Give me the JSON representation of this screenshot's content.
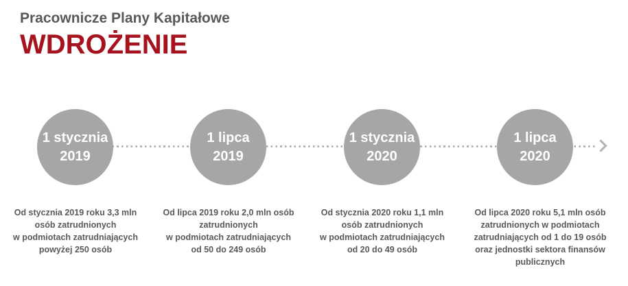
{
  "header": {
    "subtitle": "Pracownicze Plany Kapitałowe",
    "title": "WDROŻENIE"
  },
  "colors": {
    "accent_red": "#a6131f",
    "circle_gray": "#a6a6a6",
    "text_gray": "#595959",
    "line_gray": "#b3b3b3",
    "background": "#ffffff"
  },
  "timeline": {
    "arrow_icon": "chevron-right-arrow",
    "connector_style": "dotted",
    "milestones": [
      {
        "date": "1 stycznia\n2019",
        "description": "Od stycznia 2019 roku 3,3 mln\nosób zatrudnionych\nw podmiotach zatrudniających\npowyżej 250 osób"
      },
      {
        "date": "1 lipca\n2019",
        "description": "Od lipca 2019 roku 2,0 mln osób\nzatrudnionych\nw podmiotach zatrudniających\nod 50 do 249 osób"
      },
      {
        "date": "1 stycznia\n2020",
        "description": "Od stycznia 2020 roku 1,1 mln\nosób zatrudnionych\nw podmiotach zatrudniających\nod 20 do 49 osób"
      },
      {
        "date": "1 lipca\n2020",
        "description": "Od lipca 2020 roku 5,1 mln osób\nzatrudnionych w  podmiotach\nzatrudniających od 1 do 19 osób\noraz jednostki sektora finansów\npublicznych"
      }
    ]
  }
}
